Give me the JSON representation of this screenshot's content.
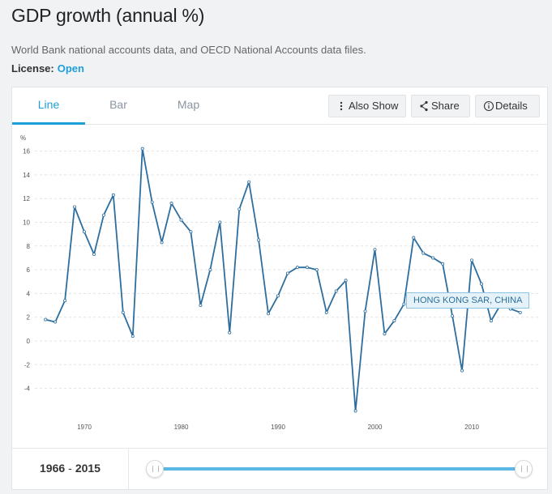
{
  "header": {
    "title": "GDP growth (annual %)",
    "subtitle": "World Bank national accounts data, and OECD National Accounts data files.",
    "license_label": "License:",
    "license_value": "Open"
  },
  "tabs": [
    {
      "label": "Line",
      "active": true
    },
    {
      "label": "Bar",
      "active": false
    },
    {
      "label": "Map",
      "active": false
    }
  ],
  "actions": {
    "also_show": "Also Show",
    "share": "Share",
    "details": "Details"
  },
  "footer": {
    "range_start": "1966",
    "range_sep": "-",
    "range_end": "2015"
  },
  "colors": {
    "line": "#2e6e9e",
    "accent": "#1e9fd8"
  },
  "chart_data": {
    "type": "line",
    "title": "GDP growth (annual %)",
    "ylabel": "%",
    "xlabel": "",
    "ylim": [
      -6,
      17
    ],
    "xlim": [
      1965,
      2016
    ],
    "yticks": [
      -4,
      -2,
      0,
      2,
      4,
      6,
      8,
      10,
      12,
      14,
      16
    ],
    "xticks": [
      1970,
      1980,
      1990,
      2000,
      2010
    ],
    "series": [
      {
        "name": "HONG KONG SAR, CHINA",
        "x": [
          1966,
          1967,
          1968,
          1969,
          1970,
          1971,
          1972,
          1973,
          1974,
          1975,
          1976,
          1977,
          1978,
          1979,
          1980,
          1981,
          1982,
          1983,
          1984,
          1985,
          1986,
          1987,
          1988,
          1989,
          1990,
          1991,
          1992,
          1993,
          1994,
          1995,
          1996,
          1997,
          1998,
          1999,
          2000,
          2001,
          2002,
          2003,
          2004,
          2005,
          2006,
          2007,
          2008,
          2009,
          2010,
          2011,
          2012,
          2013,
          2014,
          2015
        ],
        "values": [
          1.8,
          1.6,
          3.4,
          11.3,
          9.2,
          7.3,
          10.6,
          12.3,
          2.4,
          0.4,
          16.2,
          11.7,
          8.3,
          11.6,
          10.2,
          9.2,
          3.0,
          6.0,
          10.0,
          0.7,
          11.1,
          13.4,
          8.5,
          2.3,
          3.8,
          5.7,
          6.2,
          6.2,
          6.0,
          2.4,
          4.2,
          5.1,
          -5.9,
          2.5,
          7.7,
          0.6,
          1.7,
          3.1,
          8.7,
          7.4,
          7.0,
          6.5,
          2.1,
          -2.5,
          6.8,
          4.8,
          1.7,
          3.1,
          2.7,
          2.4
        ]
      }
    ],
    "tooltip": "HONG KONG SAR, CHINA"
  }
}
